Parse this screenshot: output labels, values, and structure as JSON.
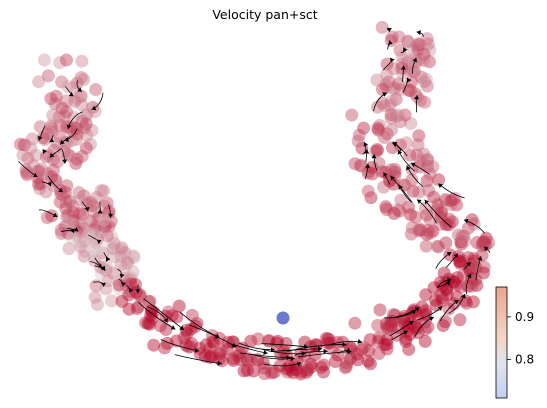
{
  "chart_data": {
    "type": "scatter",
    "title": "Velocity pan+sct",
    "xlabel": "",
    "ylabel": "",
    "grid": false,
    "axes_visible": false,
    "overlay": "velocity stream lines with arrows",
    "colorbar": {
      "colormap": "coolwarm",
      "range": [
        0.71,
        0.97
      ],
      "ticks": [
        0.8,
        0.9
      ],
      "tick_labels": [
        "0.8",
        "0.9"
      ],
      "placement": "bottom-right"
    },
    "regions": [
      {
        "region": "left-arm-top",
        "value_mean": 0.91
      },
      {
        "region": "left-arm-middle",
        "value_mean": 0.92
      },
      {
        "region": "left-arm-bottom",
        "value_mean": 0.88
      },
      {
        "region": "bottom-trough",
        "value_mean": 0.96
      },
      {
        "region": "right-arm-bottom",
        "value_mean": 0.96
      },
      {
        "region": "right-arm-middle",
        "value_mean": 0.93
      },
      {
        "region": "right-arm-top",
        "value_mean": 0.91
      }
    ]
  }
}
